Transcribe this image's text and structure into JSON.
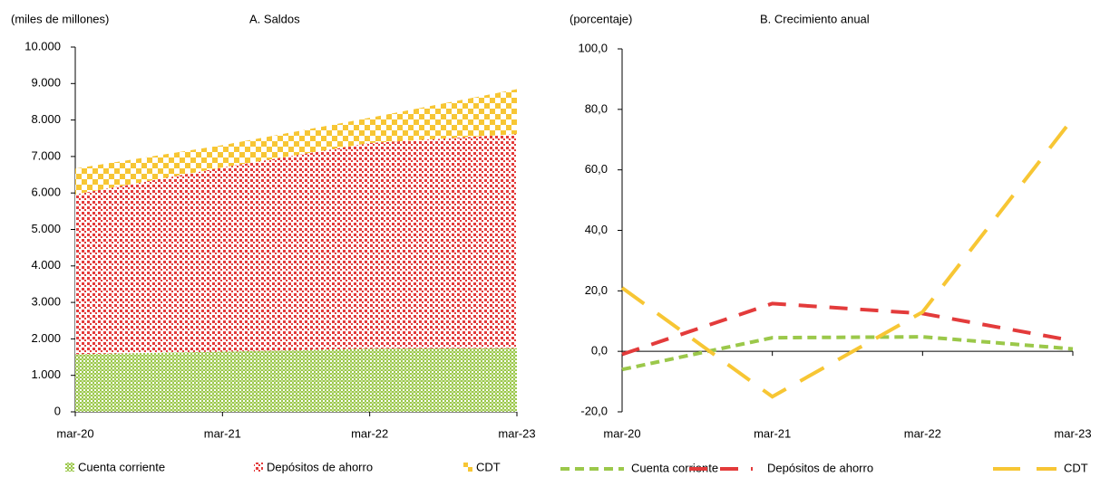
{
  "chart_data": [
    {
      "type": "area",
      "stacked": true,
      "unit_label": "(miles de millones)",
      "title": "A. Saldos",
      "categories": [
        "mar-20",
        "mar-21",
        "mar-22",
        "mar-23"
      ],
      "series": [
        {
          "name": "Cuenta corriente",
          "color": "#9bc84a",
          "values": [
            1580,
            1650,
            1730,
            1745
          ]
        },
        {
          "name": "Depósitos de ahorro",
          "color": "#e33b3b",
          "values": [
            4380,
            5050,
            5640,
            5870
          ]
        },
        {
          "name": "CDT",
          "color": "#f7c634",
          "values": [
            710,
            610,
            690,
            1230
          ]
        }
      ],
      "ylim": [
        0,
        10000
      ],
      "yticks": [
        0,
        {
          "value": 1000,
          "label": "1.000"
        },
        {
          "value": 2000,
          "label": "2.000"
        },
        {
          "value": 3000,
          "label": "3.000"
        },
        {
          "value": 4000,
          "label": "4.000"
        },
        {
          "value": 5000,
          "label": "5.000"
        },
        {
          "value": 6000,
          "label": "6.000"
        },
        {
          "value": 7000,
          "label": "7.000"
        },
        {
          "value": 8000,
          "label": "8.000"
        },
        {
          "value": 9000,
          "label": "9.000"
        },
        {
          "value": 10000,
          "label": "10.000"
        }
      ],
      "legend": "bottom"
    },
    {
      "type": "line",
      "unit_label": "(porcentaje)",
      "title": "B. Crecimiento anual",
      "categories": [
        "mar-20",
        "mar-21",
        "mar-22",
        "mar-23"
      ],
      "series": [
        {
          "name": "Cuenta corriente",
          "color": "#9bc84a",
          "values": [
            -6,
            4.5,
            4.8,
            0.8
          ]
        },
        {
          "name": "Depósitos de ahorro",
          "color": "#e33b3b",
          "values": [
            -1,
            15.8,
            12.5,
            3.5
          ]
        },
        {
          "name": "CDT",
          "color": "#f7c634",
          "values": [
            21,
            -15,
            13,
            77
          ]
        }
      ],
      "ylim": [
        -20,
        100
      ],
      "yticks": [
        {
          "value": -20,
          "label": "-20,0"
        },
        {
          "value": 0,
          "label": "0,0"
        },
        {
          "value": 20,
          "label": "20,0"
        },
        {
          "value": 40,
          "label": "40,0"
        },
        {
          "value": 60,
          "label": "60,0"
        },
        {
          "value": 80,
          "label": "80,0"
        },
        {
          "value": 100,
          "label": "100,0"
        }
      ],
      "legend": "bottom"
    }
  ]
}
